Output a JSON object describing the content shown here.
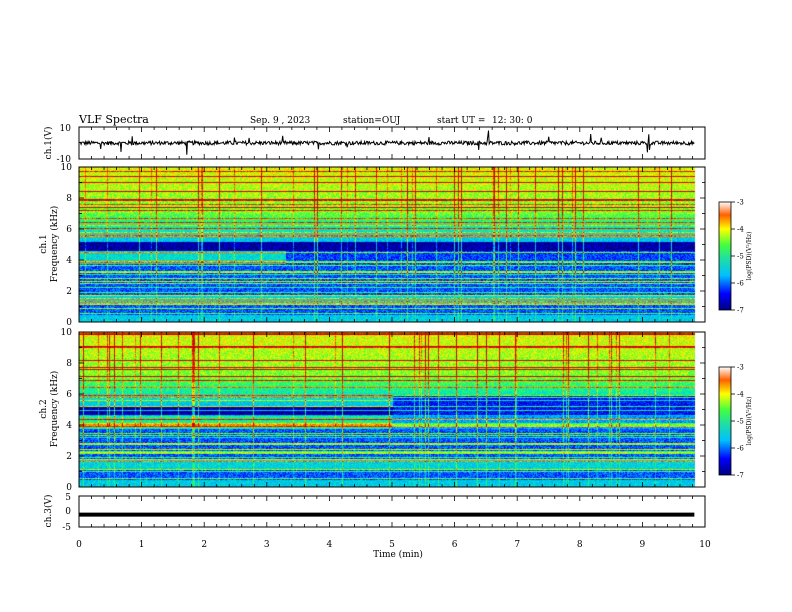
{
  "header": {
    "title": "VLF Spectra",
    "date": "Sep. 9 , 2023",
    "station": "station=OUJ",
    "start_label": "start UT =",
    "start_time": "12: 30: 0"
  },
  "chart_data": [
    {
      "id": "ch1-waveform",
      "type": "line",
      "ylabel": "ch.1(V)",
      "ylim": [
        -10,
        10
      ],
      "yticks": [
        "10",
        "-10"
      ],
      "xlim": [
        0,
        10
      ],
      "description_level": 0,
      "noise_amplitude": 1.2
    },
    {
      "id": "ch1-spectrogram",
      "type": "heatmap",
      "ylabel": "ch.1\nFrequency (kHz)",
      "ylabel_channel": "ch.1",
      "ylabel_axis": "Frequency (kHz)",
      "xlim": [
        0,
        10
      ],
      "ylim": [
        0,
        10
      ],
      "yticks": [
        "0",
        "2",
        "4",
        "6",
        "8",
        "10"
      ],
      "data_end_min": 9.83,
      "colorbar": {
        "label": "log(PSD)(V²/Hz)",
        "range": [
          -7,
          -3
        ],
        "ticks": [
          "-3",
          "-4",
          "-5",
          "-6",
          "-7"
        ]
      }
    },
    {
      "id": "ch2-spectrogram",
      "type": "heatmap",
      "ylabel": "ch.2\nFrequency (kHz)",
      "ylabel_channel": "ch.2",
      "ylabel_axis": "Frequency (kHz)",
      "xlim": [
        0,
        10
      ],
      "ylim": [
        0,
        10
      ],
      "yticks": [
        "0",
        "2",
        "4",
        "6",
        "8",
        "10"
      ],
      "data_end_min": 9.83,
      "colorbar": {
        "label": "log(PSD)(V²/Hz)",
        "range": [
          -7,
          -3
        ],
        "ticks": [
          "-3",
          "-4",
          "-5",
          "-6",
          "-7"
        ]
      }
    },
    {
      "id": "ch3-waveform",
      "type": "line",
      "ylabel": "ch.3(V)",
      "ylim": [
        -5,
        5
      ],
      "yticks": [
        "5",
        "0",
        "-5"
      ],
      "xlim": [
        0,
        10
      ],
      "level": -1,
      "xlabel": "Time (min)",
      "xticks": [
        "0",
        "1",
        "2",
        "3",
        "4",
        "5",
        "6",
        "7",
        "8",
        "9",
        "10"
      ]
    }
  ]
}
